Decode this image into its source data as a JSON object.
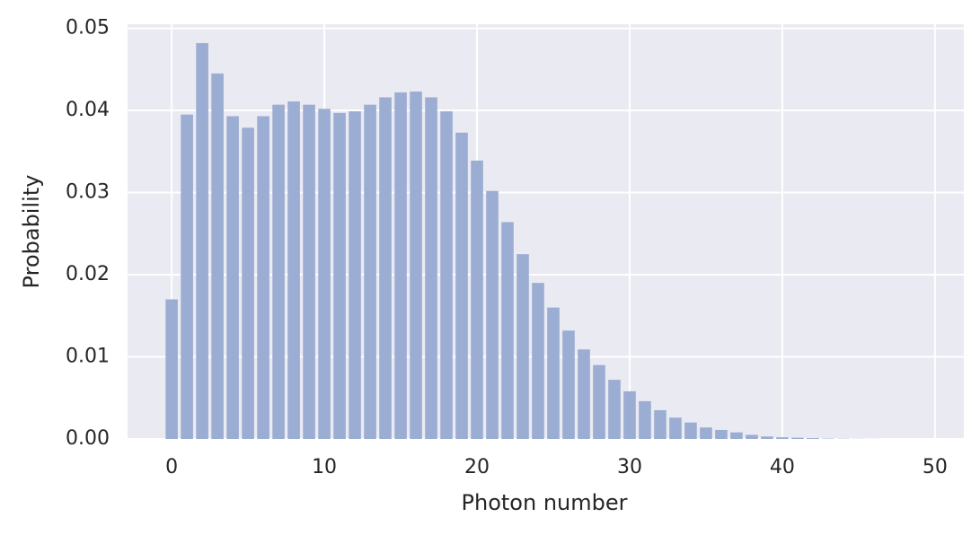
{
  "chart_data": {
    "type": "bar",
    "x_label": "Photon number",
    "y_label": "Probability",
    "x": [
      0,
      1,
      2,
      3,
      4,
      5,
      6,
      7,
      8,
      9,
      10,
      11,
      12,
      13,
      14,
      15,
      16,
      17,
      18,
      19,
      20,
      21,
      22,
      23,
      24,
      25,
      26,
      27,
      28,
      29,
      30,
      31,
      32,
      33,
      34,
      35,
      36,
      37,
      38,
      39,
      40,
      41,
      42,
      43,
      44,
      45,
      46,
      47,
      48,
      49
    ],
    "values": [
      0.017,
      0.0395,
      0.0482,
      0.0445,
      0.0393,
      0.0379,
      0.0393,
      0.0407,
      0.0411,
      0.0407,
      0.0402,
      0.0397,
      0.0399,
      0.0407,
      0.0416,
      0.0422,
      0.0423,
      0.0416,
      0.0399,
      0.0373,
      0.0339,
      0.0302,
      0.0264,
      0.0225,
      0.019,
      0.016,
      0.0132,
      0.0109,
      0.009,
      0.0072,
      0.0058,
      0.0046,
      0.0035,
      0.0026,
      0.002,
      0.0014,
      0.0011,
      0.0008,
      0.0005,
      0.0003,
      0.0002,
      0.00015,
      0.0001,
      5e-05,
      3e-05,
      2e-05,
      1e-05,
      0,
      0,
      0
    ],
    "color": "#9badd3",
    "xlim": [
      -2.89,
      51.89
    ],
    "xticks": [
      0,
      10,
      20,
      30,
      40,
      50
    ],
    "ylim": [
      0,
      0.0505
    ],
    "yticks": [
      {
        "value": 0,
        "label": "0.00"
      },
      0.01,
      0.02,
      0.03,
      0.04,
      0.05
    ],
    "grid": true
  }
}
